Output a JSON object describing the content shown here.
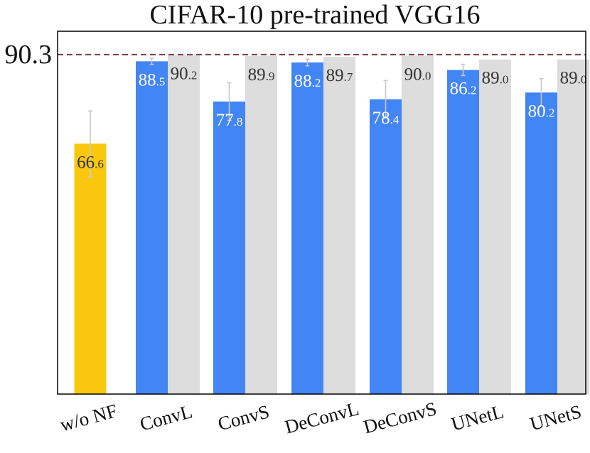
{
  "chart_data": {
    "type": "bar",
    "title": "CIFAR-10 pre-trained VGG16",
    "xlabel": "",
    "ylabel": "",
    "reference_line": {
      "value": 90.3,
      "label": "90.3",
      "color": "#7a3b43"
    },
    "ylim": [
      0,
      96.5
    ],
    "grid": false,
    "categories": [
      "w/o NF",
      "ConvL",
      "ConvS",
      "DeConvL",
      "DeConvS",
      "UNetL",
      "UNetS"
    ],
    "series": [
      {
        "color": "#4285f4",
        "label_color": "#ffffff",
        "values": [
          null,
          88.5,
          77.8,
          88.2,
          78.4,
          86.2,
          80.2
        ],
        "labels": [
          null,
          {
            "int": "88",
            "dec": ".5"
          },
          {
            "int": "77",
            "dec": ".8"
          },
          {
            "int": "88",
            "dec": ".2"
          },
          {
            "int": "78",
            "dec": ".4"
          },
          {
            "int": "86",
            "dec": ".2"
          },
          {
            "int": "80",
            "dec": ".2"
          }
        ],
        "errors": [
          null,
          0.8,
          5.0,
          0.9,
          5.0,
          1.5,
          3.7
        ]
      },
      {
        "color": "#dddddd",
        "label_color": "#333333",
        "values": [
          null,
          90.2,
          89.9,
          89.7,
          90.0,
          89.0,
          89.0
        ],
        "labels": [
          null,
          {
            "int": "90",
            "dec": ".2"
          },
          {
            "int": "89",
            "dec": ".9"
          },
          {
            "int": "89",
            "dec": ".7"
          },
          {
            "int": "90",
            "dec": ".0"
          },
          {
            "int": "89",
            "dec": ".0"
          },
          {
            "int": "89",
            "dec": ".0"
          }
        ]
      },
      {
        "color": "#f9c80e",
        "label_color": "#333333",
        "values": [
          66.6,
          null,
          null,
          null,
          null,
          null,
          null
        ],
        "labels": [
          {
            "int": "66",
            "dec": ".6"
          },
          null,
          null,
          null,
          null,
          null,
          null
        ],
        "errors": [
          8.7,
          null,
          null,
          null,
          null,
          null,
          null
        ]
      }
    ]
  }
}
